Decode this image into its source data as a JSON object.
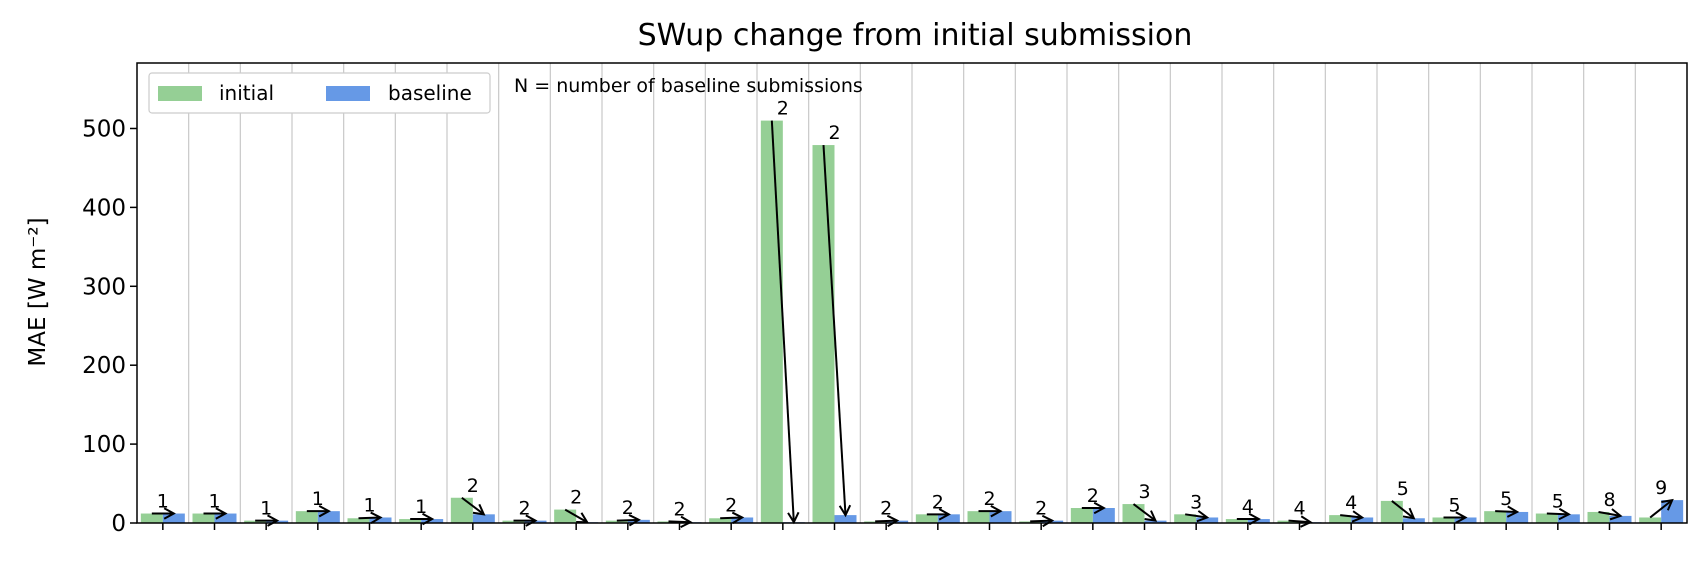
{
  "chart_data": {
    "type": "bar",
    "title": "SWup change from initial submission",
    "xlabel": "",
    "ylabel": "MAE [W m⁻²]",
    "ylim": [
      0,
      583
    ],
    "yticks": [
      0,
      100,
      200,
      300,
      400,
      500
    ],
    "grid": "vertical",
    "legend_position": "top-left",
    "annotation": "N = number of baseline submissions",
    "series": [
      {
        "name": "initial",
        "color": "#95cf95",
        "values": [
          12,
          12,
          3,
          15,
          6,
          5,
          32,
          3,
          17,
          3,
          2,
          6,
          510,
          479,
          2,
          11,
          15,
          2,
          19,
          24,
          11,
          5,
          3,
          10,
          28,
          7,
          15,
          12,
          14,
          7
        ]
      },
      {
        "name": "baseline",
        "color": "#6699e6",
        "values": [
          12,
          12,
          3,
          15,
          7,
          5,
          11,
          3,
          1,
          4,
          1,
          7,
          1,
          10,
          3,
          11,
          15,
          3,
          19,
          3,
          7,
          5,
          1,
          7,
          6,
          7,
          14,
          11,
          9,
          29
        ]
      }
    ],
    "n_labels": [
      "1",
      "1",
      "1",
      "1",
      "1",
      "1",
      "2",
      "2",
      "2",
      "2",
      "2",
      "2",
      "2",
      "2",
      "2",
      "2",
      "2",
      "2",
      "2",
      "3",
      "3",
      "4",
      "4",
      "4",
      "5",
      "5",
      "5",
      "5",
      "8",
      "9"
    ]
  }
}
